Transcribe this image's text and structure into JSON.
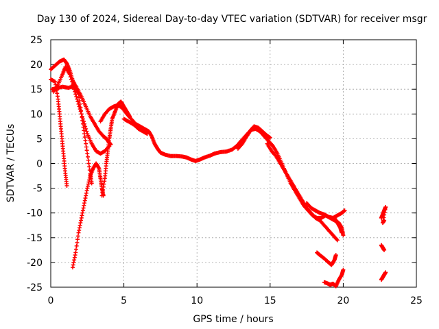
{
  "chart_data": {
    "type": "scatter",
    "title": "Day 130 of 2024, Sidereal Day-to-day VTEC variation (SDTVAR) for receiver msgr",
    "xlabel": "GPS time / hours",
    "ylabel": "SDTVAR / TECUs",
    "xlim": [
      0,
      25
    ],
    "ylim": [
      -25,
      25
    ],
    "xticks": [
      "0",
      "5",
      "10",
      "15",
      "20",
      "25"
    ],
    "yticks": [
      "25",
      "20",
      "15",
      "10",
      "5",
      "0",
      "-5",
      "-10",
      "-15",
      "-20",
      "-25"
    ],
    "xtick_values": [
      0,
      5,
      10,
      15,
      20,
      25
    ],
    "ytick_values": [
      25,
      20,
      15,
      10,
      5,
      0,
      -5,
      -10,
      -15,
      -20,
      -25
    ],
    "grid": true,
    "marker": "+",
    "color": "#ff0000",
    "series": [
      {
        "name": "trace-1",
        "points": [
          [
            0,
            19
          ],
          [
            0.3,
            19.8
          ],
          [
            0.6,
            20.6
          ],
          [
            0.9,
            21
          ],
          [
            1.1,
            20.2
          ],
          [
            1.3,
            18.8
          ],
          [
            1.5,
            16.8
          ],
          [
            1.8,
            15.2
          ],
          [
            2.1,
            13.5
          ],
          [
            2.4,
            11.5
          ],
          [
            2.7,
            9.5
          ],
          [
            3,
            8
          ],
          [
            3.3,
            6.5
          ],
          [
            3.6,
            5.5
          ],
          [
            3.8,
            5
          ],
          [
            4,
            4.2
          ],
          [
            4.1,
            3.8
          ]
        ]
      },
      {
        "name": "trace-2",
        "points": [
          [
            0,
            17
          ],
          [
            0.3,
            16.5
          ],
          [
            0.5,
            13
          ],
          [
            0.6,
            10
          ],
          [
            0.7,
            7
          ],
          [
            0.8,
            4
          ],
          [
            0.9,
            1
          ],
          [
            1,
            -2
          ],
          [
            1.1,
            -4.5
          ]
        ]
      },
      {
        "name": "trace-3",
        "points": [
          [
            0.1,
            15
          ],
          [
            0.4,
            15.2
          ],
          [
            0.8,
            15.5
          ],
          [
            1.2,
            15.3
          ],
          [
            1.6,
            15.6
          ],
          [
            1.9,
            14
          ],
          [
            2.1,
            10
          ],
          [
            2.3,
            6
          ],
          [
            2.5,
            2
          ],
          [
            2.7,
            -2
          ],
          [
            2.8,
            -4
          ]
        ]
      },
      {
        "name": "trace-4",
        "points": [
          [
            0.2,
            14.5
          ],
          [
            0.5,
            16
          ],
          [
            0.8,
            18
          ],
          [
            1,
            19.5
          ],
          [
            1.3,
            18
          ],
          [
            1.6,
            15
          ],
          [
            1.9,
            12
          ],
          [
            2.2,
            9
          ],
          [
            2.5,
            6
          ],
          [
            2.8,
            4
          ],
          [
            3.1,
            2.5
          ],
          [
            3.4,
            2
          ],
          [
            3.7,
            2.5
          ],
          [
            4,
            3.5
          ]
        ]
      },
      {
        "name": "trace-5",
        "points": [
          [
            1.5,
            -21
          ],
          [
            1.7,
            -18
          ],
          [
            1.9,
            -14
          ],
          [
            2.1,
            -11
          ],
          [
            2.3,
            -8
          ],
          [
            2.5,
            -5
          ],
          [
            2.7,
            -2.5
          ],
          [
            2.9,
            -1
          ],
          [
            3.1,
            0
          ],
          [
            3.3,
            -1
          ],
          [
            3.4,
            -3
          ],
          [
            3.5,
            -5
          ],
          [
            3.6,
            -6.5
          ]
        ]
      },
      {
        "name": "trace-6",
        "points": [
          [
            3.5,
            -6.5
          ],
          [
            3.7,
            -3
          ],
          [
            3.8,
            0
          ],
          [
            3.9,
            2.5
          ],
          [
            4,
            5
          ],
          [
            4.1,
            7
          ],
          [
            4.2,
            9
          ],
          [
            4.4,
            10.5
          ],
          [
            4.6,
            12
          ],
          [
            4.8,
            12.5
          ],
          [
            5,
            11.5
          ],
          [
            5.2,
            10.5
          ],
          [
            5.4,
            9.5
          ]
        ]
      },
      {
        "name": "trace-7",
        "points": [
          [
            3.4,
            8.5
          ],
          [
            3.7,
            10
          ],
          [
            4,
            11
          ],
          [
            4.3,
            11.5
          ],
          [
            4.6,
            11.8
          ],
          [
            4.9,
            11.2
          ],
          [
            5.2,
            10
          ],
          [
            5.5,
            9
          ],
          [
            5.8,
            8
          ],
          [
            6.1,
            7.5
          ],
          [
            6.4,
            7
          ],
          [
            6.7,
            6.5
          ],
          [
            6.9,
            5.5
          ],
          [
            7.1,
            4
          ],
          [
            7.3,
            3
          ],
          [
            7.5,
            2.2
          ],
          [
            7.8,
            1.8
          ],
          [
            8.2,
            1.5
          ],
          [
            8.6,
            1.5
          ],
          [
            9,
            1.4
          ],
          [
            9.3,
            1.2
          ],
          [
            9.6,
            0.8
          ],
          [
            9.9,
            0.5
          ],
          [
            10.2,
            0.8
          ],
          [
            10.5,
            1.2
          ],
          [
            10.9,
            1.6
          ],
          [
            11.2,
            2
          ],
          [
            11.6,
            2.3
          ],
          [
            12,
            2.4
          ],
          [
            12.4,
            2.8
          ],
          [
            12.7,
            3.5
          ],
          [
            13,
            4.5
          ],
          [
            13.3,
            5.5
          ],
          [
            13.6,
            6.5
          ],
          [
            13.9,
            7.5
          ],
          [
            14.2,
            7.2
          ],
          [
            14.5,
            6.4
          ],
          [
            14.8,
            5.6
          ],
          [
            15,
            5.2
          ]
        ]
      },
      {
        "name": "trace-8",
        "points": [
          [
            5,
            9
          ],
          [
            5.3,
            8.5
          ],
          [
            5.7,
            7.8
          ],
          [
            6,
            7
          ],
          [
            6.3,
            6.5
          ],
          [
            6.6,
            6
          ]
        ]
      },
      {
        "name": "trace-9",
        "points": [
          [
            12.8,
            3
          ],
          [
            13.1,
            4
          ],
          [
            13.4,
            5.5
          ],
          [
            13.7,
            6.8
          ],
          [
            14,
            7
          ],
          [
            14.3,
            6.5
          ],
          [
            14.6,
            5.5
          ],
          [
            14.9,
            4.5
          ],
          [
            15.2,
            3.5
          ],
          [
            15.5,
            2
          ],
          [
            15.8,
            0
          ],
          [
            16.1,
            -2
          ],
          [
            16.4,
            -4
          ],
          [
            16.7,
            -5.5
          ],
          [
            17,
            -7
          ],
          [
            17.3,
            -8.5
          ],
          [
            17.6,
            -9.5
          ],
          [
            17.9,
            -10.5
          ],
          [
            18.2,
            -11
          ],
          [
            18.5,
            -11
          ],
          [
            18.8,
            -10.5
          ],
          [
            19.1,
            -11
          ],
          [
            19.4,
            -11.5
          ],
          [
            19.7,
            -12
          ],
          [
            19.9,
            -13
          ],
          [
            20,
            -14.5
          ]
        ]
      },
      {
        "name": "trace-10",
        "points": [
          [
            14.8,
            4
          ],
          [
            15.1,
            2.5
          ],
          [
            15.4,
            1.5
          ],
          [
            15.7,
            0
          ],
          [
            16,
            -1.5
          ],
          [
            16.3,
            -3
          ],
          [
            16.6,
            -4.5
          ],
          [
            16.9,
            -6
          ],
          [
            17.2,
            -7.5
          ],
          [
            17.5,
            -9
          ],
          [
            17.8,
            -10
          ],
          [
            18.1,
            -11
          ],
          [
            18.4,
            -11.5
          ],
          [
            18.7,
            -12.5
          ],
          [
            19,
            -13.5
          ],
          [
            19.3,
            -14.5
          ],
          [
            19.6,
            -15.5
          ]
        ]
      },
      {
        "name": "trace-11",
        "points": [
          [
            17.5,
            -8
          ],
          [
            17.8,
            -9
          ],
          [
            18.1,
            -9.5
          ],
          [
            18.4,
            -10
          ],
          [
            18.7,
            -10.3
          ],
          [
            19,
            -10.8
          ],
          [
            19.3,
            -11
          ],
          [
            19.6,
            -10.5
          ],
          [
            19.9,
            -10
          ],
          [
            20.1,
            -9.5
          ]
        ]
      },
      {
        "name": "trace-12",
        "points": [
          [
            18.2,
            -18
          ],
          [
            18.4,
            -18.5
          ],
          [
            18.7,
            -19.2
          ],
          [
            19,
            -20
          ],
          [
            19.2,
            -20.5
          ],
          [
            19.4,
            -19.5
          ],
          [
            19.5,
            -18.5
          ]
        ]
      },
      {
        "name": "trace-13",
        "points": [
          [
            18.7,
            -24
          ],
          [
            18.9,
            -24.2
          ],
          [
            19.1,
            -24.5
          ],
          [
            19.3,
            -24.3
          ],
          [
            19.5,
            -24.8
          ],
          [
            19.7,
            -23.5
          ],
          [
            19.9,
            -22.5
          ],
          [
            20,
            -21.5
          ]
        ]
      },
      {
        "name": "trace-14",
        "points": [
          [
            19.4,
            -11
          ],
          [
            19.6,
            -12
          ],
          [
            19.8,
            -13
          ],
          [
            19.9,
            -14
          ]
        ]
      },
      {
        "name": "trace-15",
        "points": [
          [
            22.6,
            -11
          ],
          [
            22.7,
            -10.3
          ],
          [
            22.8,
            -9.5
          ],
          [
            22.9,
            -8.8
          ],
          [
            22.7,
            -12
          ],
          [
            22.8,
            -11.5
          ]
        ]
      },
      {
        "name": "trace-16",
        "points": [
          [
            22.6,
            -16.5
          ],
          [
            22.7,
            -17
          ],
          [
            22.8,
            -17.5
          ]
        ]
      },
      {
        "name": "trace-17",
        "points": [
          [
            22.6,
            -23.5
          ],
          [
            22.7,
            -23
          ],
          [
            22.8,
            -22.5
          ],
          [
            22.9,
            -22
          ]
        ]
      }
    ]
  }
}
